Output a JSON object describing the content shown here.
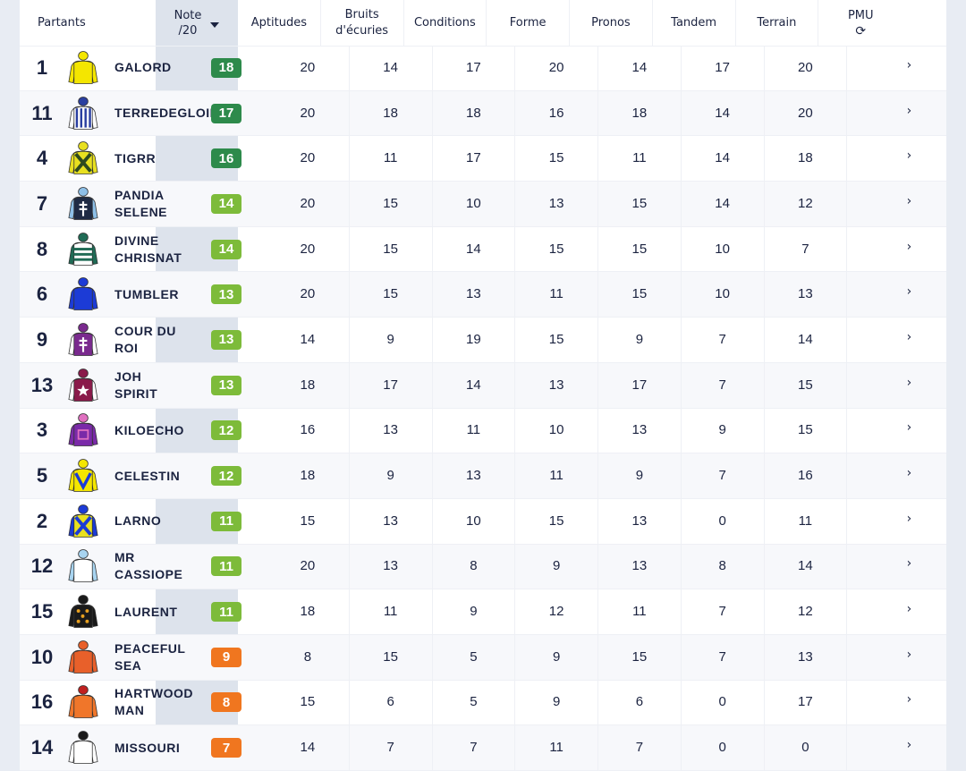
{
  "colors": {
    "dark_green": "#2d8a4b",
    "light_green": "#7dbb3a",
    "orange": "#f0761f"
  },
  "header": {
    "partants": "Partants",
    "note_line1": "Note",
    "note_line2": "/20",
    "sort_icon": "caret-down-icon",
    "columns": [
      {
        "l1": "Aptitudes",
        "l2": ""
      },
      {
        "l1": "Bruits",
        "l2": "d'écuries"
      },
      {
        "l1": "Conditions",
        "l2": ""
      },
      {
        "l1": "Forme",
        "l2": ""
      },
      {
        "l1": "Pronos",
        "l2": ""
      },
      {
        "l1": "Tandem",
        "l2": ""
      },
      {
        "l1": "Terrain",
        "l2": ""
      }
    ],
    "pmu": "PMU",
    "pmu_icon": "refresh-icon",
    "refresh_glyph": "⟳"
  },
  "chevron": "›",
  "rows": [
    {
      "num": "1",
      "name": "GALORD",
      "note": "18",
      "tier": "dark",
      "silk": {
        "body": "#f4e600",
        "sleeve": "#f4e600",
        "cap": "#f4e600",
        "pattern": "plain",
        "pc": "#f4e600"
      },
      "vals": [
        "20",
        "14",
        "17",
        "20",
        "14",
        "17",
        "20"
      ]
    },
    {
      "num": "11",
      "name": "TERREDEGLOIRE",
      "note": "17",
      "tier": "dark",
      "silk": {
        "body": "#ffffff",
        "sleeve": "#ffffff",
        "cap": "#2a3fa0",
        "pattern": "stripes",
        "pc": "#2a3fa0"
      },
      "vals": [
        "20",
        "18",
        "18",
        "16",
        "18",
        "14",
        "20"
      ]
    },
    {
      "num": "4",
      "name": "TIGRR",
      "note": "16",
      "tier": "dark",
      "silk": {
        "body": "#e8e020",
        "sleeve": "#e8e020",
        "cap": "#e8e020",
        "pattern": "cross",
        "pc": "#2f4a1f"
      },
      "vals": [
        "20",
        "11",
        "17",
        "15",
        "11",
        "14",
        "18"
      ]
    },
    {
      "num": "7",
      "name": "PANDIA SELENE",
      "note": "14",
      "tier": "light",
      "silk": {
        "body": "#1f2b44",
        "sleeve": "#8ec0e8",
        "cap": "#8ec0e8",
        "pattern": "lorraine",
        "pc": "#ffffff"
      },
      "vals": [
        "20",
        "15",
        "10",
        "13",
        "15",
        "14",
        "12"
      ]
    },
    {
      "num": "8",
      "name": "DIVINE CHRISNAT",
      "note": "14",
      "tier": "light",
      "silk": {
        "body": "#ffffff",
        "sleeve": "#1f6b55",
        "cap": "#1f6b55",
        "pattern": "hoops",
        "pc": "#1f6b55"
      },
      "vals": [
        "20",
        "15",
        "14",
        "15",
        "15",
        "10",
        "7"
      ]
    },
    {
      "num": "6",
      "name": "TUMBLER",
      "note": "13",
      "tier": "light",
      "silk": {
        "body": "#1c3bd6",
        "sleeve": "#1c3bd6",
        "cap": "#1c3bd6",
        "pattern": "plain",
        "pc": "#1c3bd6"
      },
      "vals": [
        "20",
        "15",
        "13",
        "11",
        "15",
        "10",
        "13"
      ]
    },
    {
      "num": "9",
      "name": "COUR DU ROI",
      "note": "13",
      "tier": "light",
      "silk": {
        "body": "#7a2a8e",
        "sleeve": "#ffffff",
        "cap": "#7a2a8e",
        "pattern": "lorraine",
        "pc": "#ffffff"
      },
      "vals": [
        "14",
        "9",
        "19",
        "15",
        "9",
        "7",
        "14"
      ]
    },
    {
      "num": "13",
      "name": "JOH SPIRIT",
      "note": "13",
      "tier": "light",
      "silk": {
        "body": "#8a1a4a",
        "sleeve": "#ffffff",
        "cap": "#8a1a4a",
        "pattern": "star",
        "pc": "#ffffff"
      },
      "vals": [
        "18",
        "17",
        "14",
        "13",
        "17",
        "7",
        "15"
      ]
    },
    {
      "num": "3",
      "name": "KILOECHO",
      "note": "12",
      "tier": "light",
      "silk": {
        "body": "#7a2aa8",
        "sleeve": "#7a2aa8",
        "cap": "#e070c0",
        "pattern": "square",
        "pc": "#e070c0"
      },
      "vals": [
        "16",
        "13",
        "11",
        "10",
        "13",
        "9",
        "15"
      ]
    },
    {
      "num": "5",
      "name": "CELESTIN",
      "note": "12",
      "tier": "light",
      "silk": {
        "body": "#f4e600",
        "sleeve": "#f4e600",
        "cap": "#f4e600",
        "pattern": "chevron",
        "pc": "#1c3bd6"
      },
      "vals": [
        "18",
        "9",
        "13",
        "11",
        "9",
        "7",
        "16"
      ]
    },
    {
      "num": "2",
      "name": "LARNO",
      "note": "11",
      "tier": "light",
      "silk": {
        "body": "#e8e020",
        "sleeve": "#1c3bd6",
        "cap": "#1c3bd6",
        "pattern": "cross",
        "pc": "#1c3bd6"
      },
      "vals": [
        "15",
        "13",
        "10",
        "15",
        "13",
        "0",
        "11"
      ]
    },
    {
      "num": "12",
      "name": "MR CASSIOPE",
      "note": "11",
      "tier": "light",
      "silk": {
        "body": "#ffffff",
        "sleeve": "#a8d4f0",
        "cap": "#a8d4f0",
        "pattern": "plain",
        "pc": "#a8d4f0"
      },
      "vals": [
        "20",
        "13",
        "8",
        "9",
        "13",
        "8",
        "14"
      ]
    },
    {
      "num": "15",
      "name": "LAURENT",
      "note": "11",
      "tier": "light",
      "silk": {
        "body": "#1a1a1a",
        "sleeve": "#1a1a1a",
        "cap": "#1a1a1a",
        "pattern": "spots",
        "pc": "#e8a020"
      },
      "vals": [
        "18",
        "11",
        "9",
        "12",
        "11",
        "7",
        "12"
      ]
    },
    {
      "num": "10",
      "name": "PEACEFUL SEA",
      "note": "9",
      "tier": "orange",
      "silk": {
        "body": "#e8602a",
        "sleeve": "#e8602a",
        "cap": "#e8602a",
        "pattern": "plain",
        "pc": "#e8602a"
      },
      "vals": [
        "8",
        "15",
        "5",
        "9",
        "15",
        "7",
        "13"
      ]
    },
    {
      "num": "16",
      "name": "HARTWOOD MAN",
      "note": "8",
      "tier": "orange",
      "silk": {
        "body": "#f0762a",
        "sleeve": "#f0762a",
        "cap": "#c02020",
        "pattern": "plain",
        "pc": "#f0762a"
      },
      "vals": [
        "15",
        "6",
        "5",
        "9",
        "6",
        "0",
        "17"
      ]
    },
    {
      "num": "14",
      "name": "MISSOURI",
      "note": "7",
      "tier": "orange",
      "silk": {
        "body": "#ffffff",
        "sleeve": "#ffffff",
        "cap": "#1a1a1a",
        "pattern": "plain",
        "pc": "#1a1a1a"
      },
      "vals": [
        "14",
        "7",
        "7",
        "11",
        "7",
        "0",
        "0"
      ]
    }
  ]
}
